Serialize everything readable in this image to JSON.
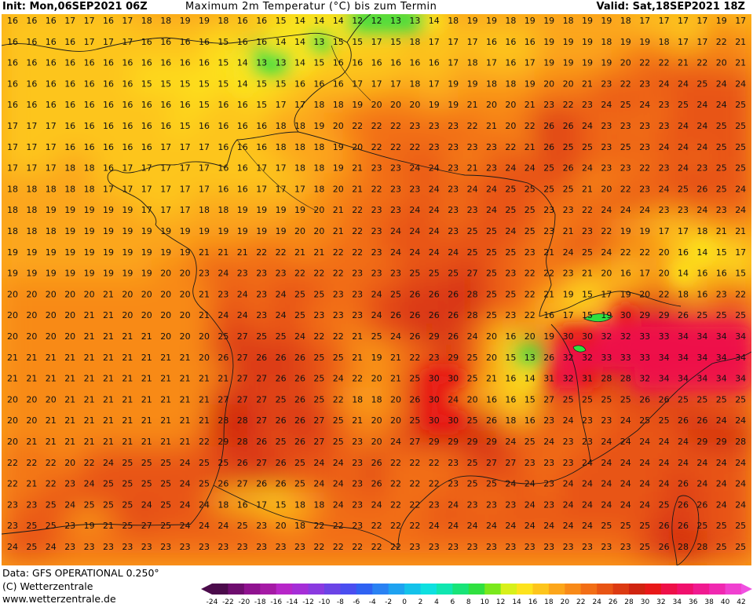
{
  "header": {
    "init": "Init: Mon,06SEP2021 06Z",
    "title": "Maximum 2m Temperatur (°C) bis zum Termin",
    "valid": "Valid: Sat,18SEP2021 18Z"
  },
  "footer": {
    "data_line": "Data: GFS OPERATIONAL 0.250°",
    "copyright": "(C) Wetterzentrale",
    "url": "www.wetterzentrale.de"
  },
  "colorbar": {
    "labels": [
      "-24",
      "-22",
      "-20",
      "-18",
      "-16",
      "-14",
      "-12",
      "-10",
      "-8",
      "-6",
      "-4",
      "-2",
      "0",
      "2",
      "4",
      "6",
      "8",
      "10",
      "12",
      "14",
      "16",
      "18",
      "20",
      "22",
      "24",
      "26",
      "28",
      "30",
      "32",
      "34",
      "36",
      "38",
      "40",
      "42"
    ],
    "colors": [
      "#4b0b4b",
      "#6e0d6e",
      "#8f128f",
      "#a51aa5",
      "#b726c8",
      "#a52ed7",
      "#8a3ae0",
      "#6b44e6",
      "#4a4ef0",
      "#2f62f2",
      "#2a82f3",
      "#1ea2f0",
      "#14c2ea",
      "#0ee0e0",
      "#10e6b0",
      "#18e478",
      "#30e040",
      "#7ae81c",
      "#d8f01a",
      "#fde31d",
      "#fdc51c",
      "#fca61a",
      "#f88a18",
      "#f26e16",
      "#e85414",
      "#dc3a12",
      "#d02410",
      "#e81818",
      "#ee1048",
      "#f0106c",
      "#f01a90",
      "#f028b0",
      "#f040d0"
    ]
  },
  "map_data": {
    "colors": {
      "t14": "#fde31d",
      "t16": "#fdc51c",
      "t18": "#fca61a",
      "t20": "#f88a18",
      "t22": "#f26e16",
      "t24": "#e85414",
      "t26": "#dc3a12",
      "t28": "#d02410",
      "t30": "#e81818",
      "t32": "#ee1048",
      "t12": "#30e040"
    },
    "temperature_grid": [
      [
        16,
        16,
        16,
        17,
        17,
        16,
        17,
        18,
        18,
        19,
        19,
        18,
        16,
        16,
        15,
        14,
        14,
        14,
        12,
        12,
        13,
        13,
        14,
        18,
        19,
        19,
        18,
        19,
        19,
        18,
        19,
        19,
        18,
        17,
        17,
        17,
        17,
        19,
        17
      ],
      [
        16,
        16,
        16,
        16,
        17,
        17,
        17,
        16,
        16,
        16,
        16,
        15,
        16,
        16,
        14,
        14,
        13,
        15,
        15,
        17,
        15,
        18,
        17,
        17,
        17,
        16,
        16,
        16,
        19,
        19,
        19,
        18,
        19,
        19,
        18,
        17,
        17,
        22,
        21
      ],
      [
        16,
        16,
        16,
        16,
        16,
        16,
        16,
        16,
        16,
        16,
        16,
        15,
        14,
        13,
        13,
        14,
        15,
        16,
        16,
        16,
        16,
        16,
        16,
        17,
        18,
        17,
        16,
        17,
        19,
        19,
        19,
        19,
        20,
        22,
        22,
        21,
        22,
        20,
        21
      ],
      [
        16,
        16,
        16,
        16,
        16,
        16,
        16,
        15,
        15,
        15,
        15,
        15,
        14,
        15,
        15,
        16,
        16,
        16,
        17,
        17,
        17,
        18,
        17,
        19,
        19,
        18,
        18,
        19,
        20,
        20,
        21,
        23,
        22,
        23,
        24,
        24,
        25,
        24,
        24
      ],
      [
        16,
        16,
        16,
        16,
        16,
        16,
        16,
        16,
        16,
        16,
        15,
        16,
        16,
        15,
        17,
        17,
        18,
        18,
        19,
        20,
        20,
        20,
        19,
        19,
        21,
        20,
        20,
        21,
        23,
        22,
        23,
        24,
        25,
        24,
        23,
        25,
        24,
        24,
        25
      ],
      [
        17,
        17,
        17,
        16,
        16,
        16,
        16,
        16,
        16,
        15,
        16,
        16,
        16,
        16,
        18,
        18,
        19,
        20,
        22,
        22,
        22,
        23,
        23,
        23,
        22,
        21,
        20,
        22,
        26,
        26,
        24,
        23,
        23,
        23,
        23,
        24,
        24,
        25,
        25
      ],
      [
        17,
        17,
        17,
        16,
        16,
        16,
        16,
        16,
        17,
        17,
        17,
        16,
        16,
        16,
        18,
        18,
        18,
        19,
        20,
        22,
        22,
        22,
        23,
        23,
        23,
        23,
        22,
        21,
        26,
        25,
        25,
        23,
        25,
        23,
        24,
        24,
        24,
        25,
        25
      ],
      [
        17,
        17,
        17,
        18,
        18,
        16,
        17,
        17,
        17,
        17,
        17,
        16,
        16,
        17,
        17,
        18,
        18,
        19,
        21,
        23,
        23,
        24,
        24,
        23,
        21,
        23,
        24,
        24,
        25,
        26,
        24,
        23,
        23,
        22,
        23,
        24,
        23,
        25,
        25
      ],
      [
        18,
        18,
        18,
        18,
        18,
        17,
        17,
        17,
        17,
        17,
        17,
        16,
        16,
        17,
        17,
        17,
        18,
        20,
        21,
        22,
        23,
        23,
        24,
        23,
        24,
        24,
        25,
        25,
        25,
        25,
        21,
        20,
        22,
        23,
        24,
        25,
        26,
        25,
        24
      ],
      [
        18,
        18,
        19,
        19,
        19,
        19,
        19,
        17,
        17,
        17,
        18,
        18,
        19,
        19,
        19,
        19,
        20,
        21,
        22,
        23,
        23,
        24,
        24,
        23,
        23,
        24,
        25,
        25,
        23,
        23,
        22,
        24,
        24,
        24,
        23,
        23,
        24,
        23,
        24
      ],
      [
        18,
        18,
        18,
        19,
        19,
        19,
        19,
        19,
        19,
        19,
        19,
        19,
        19,
        19,
        19,
        20,
        20,
        21,
        22,
        23,
        24,
        24,
        24,
        23,
        25,
        25,
        24,
        25,
        23,
        21,
        23,
        22,
        19,
        19,
        17,
        17,
        18,
        21,
        21
      ],
      [
        19,
        19,
        19,
        19,
        19,
        19,
        19,
        19,
        19,
        19,
        21,
        21,
        21,
        22,
        22,
        21,
        21,
        22,
        22,
        23,
        24,
        24,
        24,
        24,
        25,
        25,
        25,
        23,
        21,
        24,
        25,
        24,
        22,
        22,
        20,
        16,
        14,
        15,
        17
      ],
      [
        19,
        19,
        19,
        19,
        19,
        19,
        19,
        19,
        20,
        20,
        23,
        24,
        23,
        23,
        23,
        22,
        22,
        22,
        23,
        23,
        23,
        25,
        25,
        25,
        27,
        25,
        23,
        22,
        22,
        23,
        21,
        20,
        16,
        17,
        20,
        14,
        16,
        16,
        15
      ],
      [
        20,
        20,
        20,
        20,
        20,
        21,
        20,
        20,
        20,
        20,
        21,
        23,
        24,
        23,
        24,
        25,
        25,
        23,
        23,
        24,
        25,
        26,
        26,
        26,
        28,
        25,
        25,
        22,
        21,
        19,
        15,
        17,
        19,
        20,
        22,
        18,
        16,
        23,
        22
      ],
      [
        20,
        20,
        20,
        20,
        21,
        21,
        20,
        20,
        20,
        20,
        21,
        24,
        24,
        23,
        24,
        25,
        23,
        23,
        23,
        24,
        26,
        26,
        26,
        26,
        28,
        25,
        23,
        22,
        16,
        17,
        15,
        19,
        30,
        29,
        29,
        26,
        25,
        25,
        25
      ],
      [
        20,
        20,
        20,
        20,
        21,
        21,
        21,
        21,
        20,
        20,
        20,
        25,
        27,
        25,
        25,
        24,
        22,
        22,
        21,
        25,
        24,
        26,
        29,
        26,
        24,
        20,
        16,
        20,
        19,
        30,
        30,
        32,
        32,
        33,
        33,
        34,
        34,
        34,
        34
      ],
      [
        21,
        21,
        21,
        21,
        21,
        21,
        21,
        21,
        21,
        21,
        20,
        26,
        27,
        26,
        26,
        26,
        25,
        25,
        21,
        19,
        21,
        22,
        23,
        29,
        25,
        20,
        15,
        13,
        26,
        32,
        32,
        33,
        33,
        33,
        34,
        34,
        34,
        34,
        34
      ],
      [
        21,
        21,
        21,
        21,
        21,
        21,
        21,
        21,
        21,
        21,
        21,
        21,
        27,
        27,
        26,
        26,
        25,
        24,
        22,
        20,
        21,
        25,
        30,
        30,
        25,
        21,
        16,
        14,
        31,
        32,
        31,
        28,
        28,
        32,
        34,
        34,
        34,
        34,
        34
      ],
      [
        20,
        20,
        20,
        21,
        21,
        21,
        21,
        21,
        21,
        21,
        21,
        27,
        27,
        27,
        25,
        26,
        25,
        22,
        18,
        18,
        20,
        26,
        30,
        24,
        20,
        16,
        16,
        15,
        27,
        25,
        25,
        25,
        25,
        26,
        26,
        25,
        25,
        25,
        25
      ],
      [
        20,
        20,
        21,
        21,
        21,
        21,
        21,
        21,
        21,
        21,
        21,
        28,
        28,
        27,
        26,
        26,
        27,
        25,
        21,
        20,
        20,
        25,
        30,
        30,
        25,
        26,
        18,
        16,
        23,
        24,
        23,
        23,
        24,
        25,
        25,
        26,
        26,
        24,
        24
      ],
      [
        20,
        21,
        21,
        21,
        21,
        21,
        21,
        21,
        21,
        21,
        22,
        29,
        28,
        26,
        25,
        26,
        27,
        25,
        23,
        20,
        24,
        27,
        29,
        29,
        29,
        29,
        24,
        25,
        24,
        23,
        23,
        24,
        24,
        24,
        24,
        24,
        29,
        29,
        28
      ],
      [
        22,
        22,
        22,
        20,
        22,
        24,
        25,
        25,
        25,
        24,
        25,
        25,
        26,
        27,
        26,
        25,
        24,
        24,
        23,
        26,
        22,
        22,
        22,
        23,
        25,
        27,
        27,
        23,
        23,
        23,
        24,
        24,
        24,
        24,
        24,
        24,
        24,
        24,
        24
      ],
      [
        22,
        21,
        22,
        23,
        24,
        25,
        25,
        25,
        25,
        24,
        25,
        26,
        27,
        26,
        26,
        25,
        24,
        24,
        23,
        26,
        22,
        22,
        22,
        23,
        25,
        25,
        24,
        24,
        23,
        24,
        24,
        24,
        24,
        24,
        24,
        26,
        24,
        24,
        24
      ],
      [
        23,
        23,
        25,
        24,
        25,
        25,
        25,
        24,
        25,
        24,
        24,
        18,
        16,
        17,
        15,
        18,
        18,
        24,
        23,
        24,
        22,
        22,
        23,
        24,
        23,
        23,
        23,
        24,
        23,
        24,
        24,
        24,
        24,
        24,
        25,
        26,
        26,
        24,
        24
      ],
      [
        23,
        25,
        25,
        23,
        19,
        21,
        25,
        27,
        25,
        24,
        24,
        24,
        25,
        23,
        20,
        18,
        22,
        22,
        23,
        22,
        22,
        22,
        24,
        24,
        24,
        24,
        24,
        24,
        24,
        24,
        24,
        25,
        25,
        25,
        26,
        26,
        25,
        25,
        25
      ],
      [
        24,
        25,
        24,
        23,
        23,
        23,
        23,
        23,
        23,
        23,
        23,
        23,
        23,
        23,
        23,
        23,
        22,
        22,
        22,
        22,
        22,
        23,
        23,
        23,
        23,
        23,
        23,
        23,
        23,
        23,
        23,
        23,
        23,
        25,
        26,
        28,
        28,
        25,
        25
      ]
    ]
  }
}
